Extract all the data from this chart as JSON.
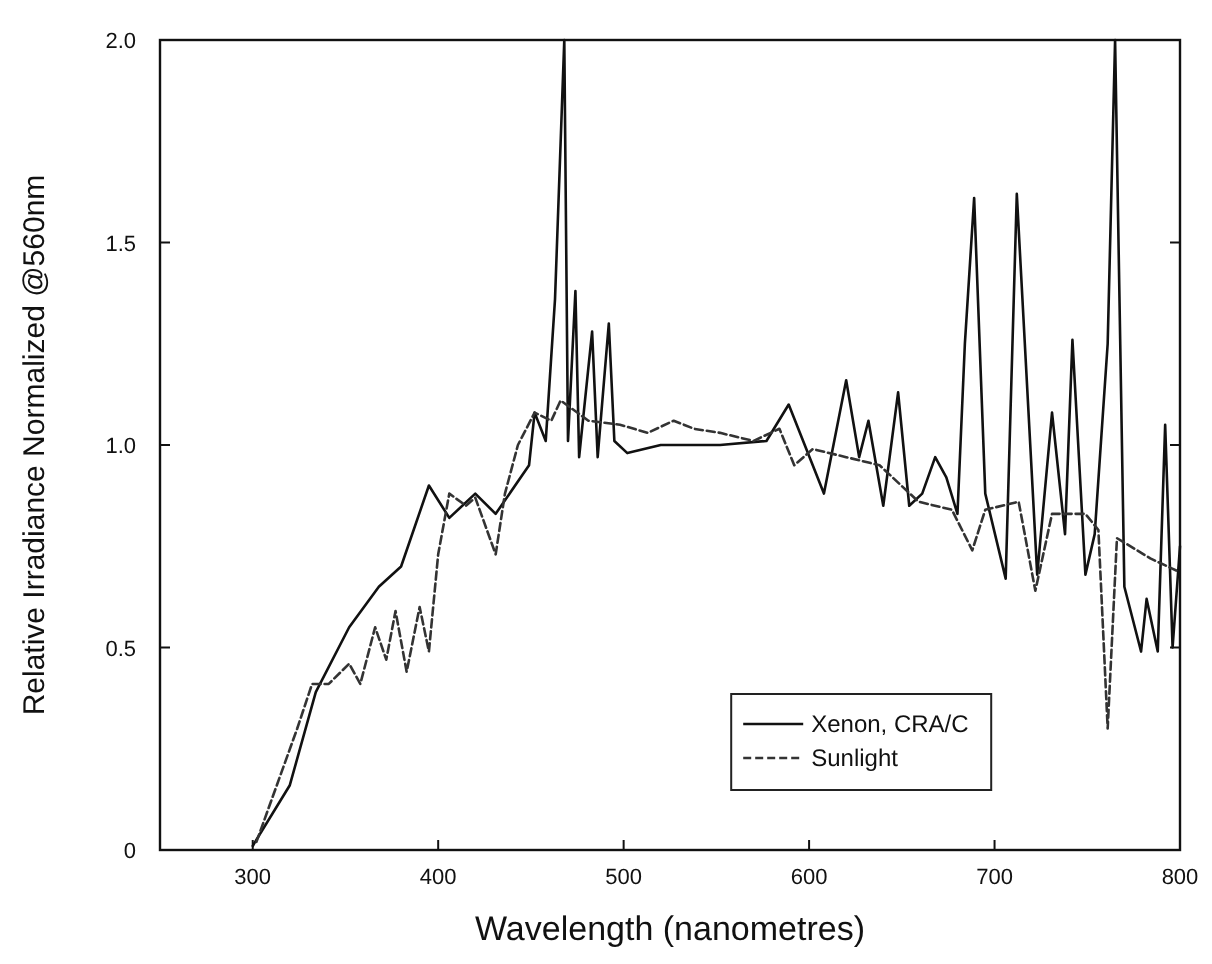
{
  "chart_data": {
    "type": "line",
    "xlabel": "Wavelength (nanometres)",
    "ylabel": "Relative Irradiance Normalized @560nm",
    "xlim": [
      250,
      800
    ],
    "xticks": [
      300,
      400,
      500,
      600,
      700,
      800
    ],
    "ylim": [
      0,
      2
    ],
    "yticks": [
      0,
      0.5,
      {
        "value": 1,
        "label": "1.0"
      },
      1.5,
      {
        "value": 2,
        "label": "2.0"
      }
    ],
    "legend": "bottom right",
    "grid": false,
    "series": [
      {
        "name": "Xenon, CRA/C",
        "color": "#111111",
        "line_style": "solid",
        "x": [
          300,
          320,
          334,
          352,
          368,
          380,
          395,
          406,
          420,
          431,
          449,
          452,
          458,
          463,
          468,
          470,
          474,
          476,
          483,
          486,
          492,
          495,
          502,
          520,
          552,
          577,
          589,
          608,
          620,
          627,
          632,
          640,
          648,
          654,
          661,
          668,
          674,
          680,
          684,
          689,
          695,
          706,
          712,
          723,
          731,
          738,
          742,
          749,
          754,
          761,
          765,
          770,
          779,
          782,
          788,
          792,
          796,
          800
        ],
        "values": [
          0.01,
          0.16,
          0.39,
          0.55,
          0.65,
          0.7,
          0.9,
          0.82,
          0.88,
          0.83,
          0.95,
          1.08,
          1.01,
          1.36,
          2.0,
          1.01,
          1.38,
          0.97,
          1.28,
          0.97,
          1.3,
          1.01,
          0.98,
          1.0,
          1.0,
          1.01,
          1.1,
          0.88,
          1.16,
          0.97,
          1.06,
          0.85,
          1.13,
          0.85,
          0.88,
          0.97,
          0.92,
          0.83,
          1.25,
          1.61,
          0.88,
          0.67,
          1.62,
          0.68,
          1.08,
          0.78,
          1.26,
          0.68,
          0.78,
          1.25,
          2.0,
          0.65,
          0.49,
          0.62,
          0.49,
          1.05,
          0.5,
          0.75
        ]
      },
      {
        "name": "Sunlight",
        "color": "#333333",
        "line_style": "dashed",
        "x": [
          302,
          324,
          332,
          341,
          352,
          358,
          366,
          372,
          377,
          383,
          390,
          395,
          400,
          406,
          415,
          420,
          431,
          436,
          443,
          452,
          461,
          466,
          481,
          498,
          513,
          527,
          538,
          552,
          570,
          584,
          592,
          602,
          620,
          638,
          659,
          677,
          688,
          695,
          713,
          722,
          731,
          749,
          756,
          761,
          766,
          784,
          798
        ],
        "values": [
          0.02,
          0.3,
          0.41,
          0.41,
          0.46,
          0.41,
          0.55,
          0.47,
          0.59,
          0.44,
          0.6,
          0.49,
          0.73,
          0.88,
          0.85,
          0.87,
          0.73,
          0.88,
          1.0,
          1.08,
          1.06,
          1.11,
          1.06,
          1.05,
          1.03,
          1.06,
          1.04,
          1.03,
          1.01,
          1.04,
          0.95,
          0.99,
          0.97,
          0.95,
          0.86,
          0.84,
          0.74,
          0.84,
          0.86,
          0.64,
          0.83,
          0.83,
          0.79,
          0.3,
          0.77,
          0.72,
          0.69
        ]
      }
    ]
  }
}
